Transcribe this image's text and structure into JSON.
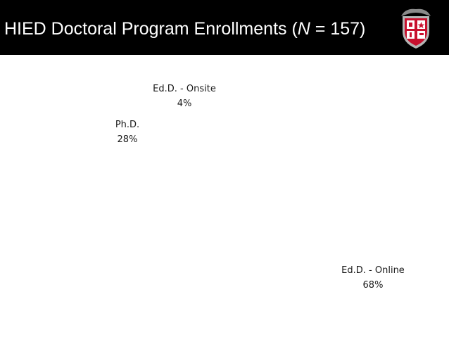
{
  "header": {
    "title_before": "HIED Doctoral Program Enrollments (",
    "title_italic": "N",
    "title_after": " = 157)"
  },
  "colors": {
    "header_background": "#000000",
    "header_text": "#ffffff",
    "logo_red": "#c8102e",
    "logo_gray": "#8a8a8a",
    "background": "#ffffff"
  },
  "chart_data": {
    "type": "pie",
    "title": "",
    "categories": [
      "Ed.D. - Onsite",
      "Ph.D.",
      "Ed.D. - Online"
    ],
    "values": [
      4,
      28,
      68
    ],
    "labels": [
      "4%",
      "28%",
      "68%"
    ],
    "unit": "%",
    "slice_fill": "#ffffff"
  }
}
